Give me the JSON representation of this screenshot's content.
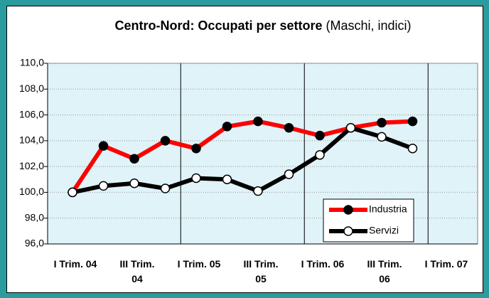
{
  "chart_data": {
    "type": "line",
    "title": "Centro-Nord: Occupati per settore",
    "subtitle": "(Maschi, indici)",
    "categories": [
      "I Trim. 04",
      null,
      "III Trim. 04",
      null,
      "I Trim. 05",
      null,
      "III Trim. 05",
      null,
      "I Trim. 06",
      null,
      "III Trim. 06",
      null,
      "I Trim. 07"
    ],
    "series": [
      {
        "name": "Industria",
        "color": "#ff0000",
        "marker_fill": "#000000",
        "values": [
          100.0,
          103.6,
          102.6,
          104.0,
          103.4,
          105.1,
          105.5,
          105.0,
          104.4,
          105.0,
          105.4,
          105.5,
          null
        ]
      },
      {
        "name": "Servizi",
        "color": "#000000",
        "marker_fill": "#ffffff",
        "values": [
          100.0,
          100.5,
          100.7,
          100.3,
          101.1,
          101.0,
          100.1,
          101.4,
          102.9,
          105.0,
          104.3,
          103.4,
          null
        ]
      }
    ],
    "ylim": [
      96,
      110
    ],
    "yticks": [
      {
        "value": 96,
        "label": "96,0"
      },
      {
        "value": 98,
        "label": "98,0"
      },
      {
        "value": 100,
        "label": "100,0"
      },
      {
        "value": 102,
        "label": "102,0"
      },
      {
        "value": 104,
        "label": "104,0"
      },
      {
        "value": 106,
        "label": "106,0"
      },
      {
        "value": 108,
        "label": "108,0"
      },
      {
        "value": 110,
        "label": "110,0"
      }
    ],
    "grid": true,
    "legend": "lower right",
    "background": "#2a9c9e",
    "plot_background": "#dff3f8"
  }
}
